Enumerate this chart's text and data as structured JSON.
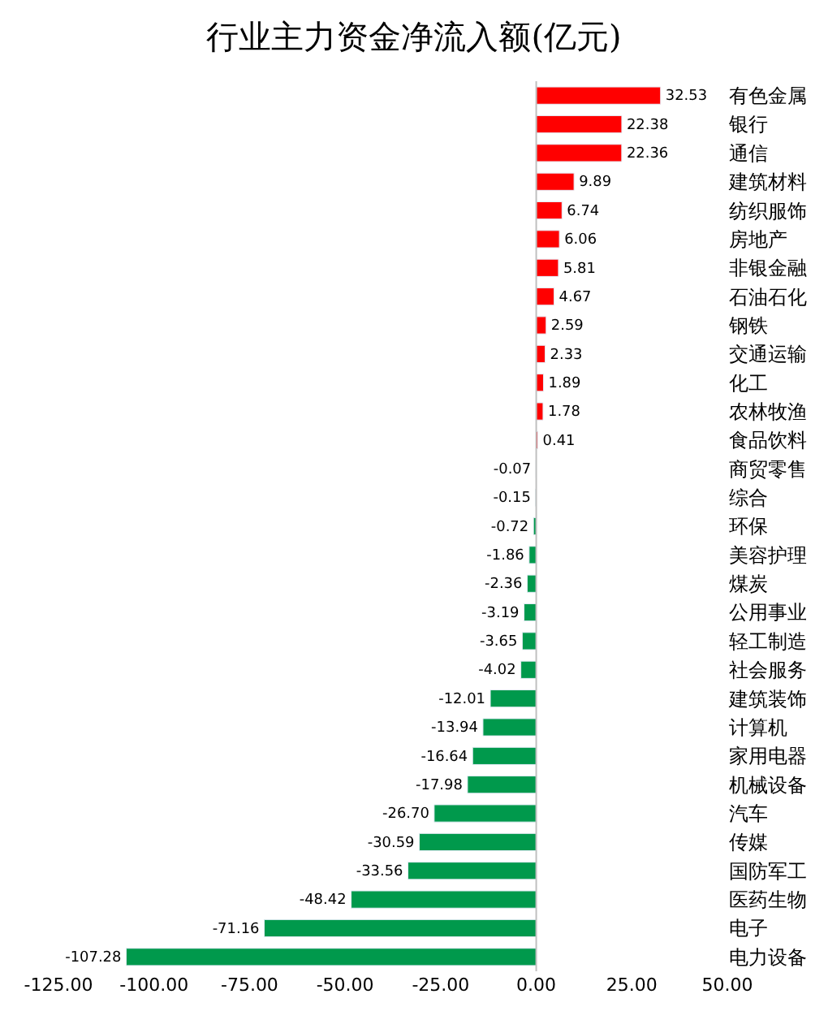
{
  "chart_data": {
    "type": "bar",
    "orientation": "horizontal",
    "title": "行业主力资金净流入额(亿元)",
    "categories": [
      "有色金属",
      "银行",
      "通信",
      "建筑材料",
      "纺织服饰",
      "房地产",
      "非银金融",
      "石油石化",
      "钢铁",
      "交通运输",
      "化工",
      "农林牧渔",
      "食品饮料",
      "商贸零售",
      "综合",
      "环保",
      "美容护理",
      "煤炭",
      "公用事业",
      "轻工制造",
      "社会服务",
      "建筑装饰",
      "计算机",
      "家用电器",
      "机械设备",
      "汽车",
      "传媒",
      "国防军工",
      "医药生物",
      "电子",
      "电力设备"
    ],
    "values": [
      32.53,
      22.38,
      22.36,
      9.89,
      6.74,
      6.06,
      5.81,
      4.67,
      2.59,
      2.33,
      1.89,
      1.78,
      0.41,
      -0.07,
      -0.15,
      -0.72,
      -1.86,
      -2.36,
      -3.19,
      -3.65,
      -4.02,
      -12.01,
      -13.94,
      -16.64,
      -17.98,
      -26.7,
      -30.59,
      -33.56,
      -48.42,
      -71.16,
      -107.28
    ],
    "value_labels": [
      "32.53",
      "22.38",
      "22.36",
      "9.89",
      "6.74",
      "6.06",
      "5.81",
      "4.67",
      "2.59",
      "2.33",
      "1.89",
      "1.78",
      "0.41",
      "-0.07",
      "-0.15",
      "-0.72",
      "-1.86",
      "-2.36",
      "-3.19",
      "-3.65",
      "-4.02",
      "-12.01",
      "-13.94",
      "-16.64",
      "-17.98",
      "-26.70",
      "-30.59",
      "-33.56",
      "-48.42",
      "-71.16",
      "-107.28"
    ],
    "colors": [
      "#ff0000",
      "#ff0000",
      "#ff0000",
      "#ff0000",
      "#ff0000",
      "#ff0000",
      "#ff0000",
      "#ff0000",
      "#ff0000",
      "#ff0000",
      "#ff0000",
      "#ff0000",
      "#ff0000",
      "#00994c",
      "#00994c",
      "#00994c",
      "#00994c",
      "#00994c",
      "#00994c",
      "#00994c",
      "#00994c",
      "#00994c",
      "#00994c",
      "#00994c",
      "#00994c",
      "#00994c",
      "#00994c",
      "#00994c",
      "#00994c",
      "#00994c",
      "#00994c"
    ],
    "xlim": [
      -125,
      50
    ],
    "xticks": [
      {
        "value": -125,
        "label": "-125.00"
      },
      {
        "value": -100,
        "label": "-100.00"
      },
      {
        "value": -75,
        "label": "-75.00"
      },
      {
        "value": -50,
        "label": "-50.00"
      },
      {
        "value": -25,
        "label": "-25.00"
      },
      {
        "value": 0,
        "label": "0.00"
      },
      {
        "value": 25,
        "label": "25.00"
      },
      {
        "value": 50,
        "label": "50.00"
      }
    ],
    "ref_lines": [
      {
        "axis": "x",
        "value": 0,
        "color": "#c0c0c0"
      }
    ]
  }
}
